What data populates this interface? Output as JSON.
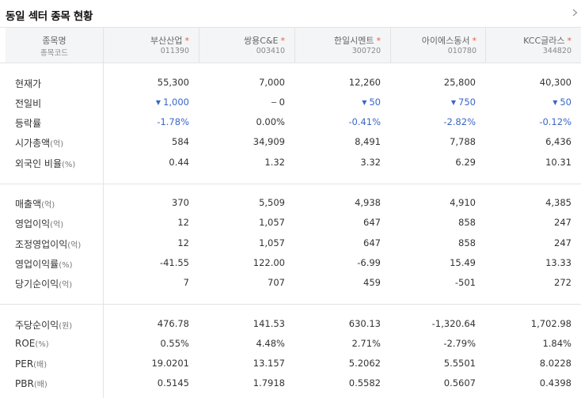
{
  "title": "동일 섹터 종목 현황",
  "header": {
    "label_name": "종목명",
    "label_code": "종목코드",
    "stocks": [
      {
        "name": "부산산업",
        "code": "011390"
      },
      {
        "name": "쌍용C&E",
        "code": "003410"
      },
      {
        "name": "한일시멘트",
        "code": "300720"
      },
      {
        "name": "아이에스동서",
        "code": "010780"
      },
      {
        "name": "KCC글라스",
        "code": "344820"
      }
    ]
  },
  "rows": {
    "price": {
      "label": "현재가",
      "unit": "",
      "values": [
        "55,300",
        "7,000",
        "12,260",
        "25,800",
        "40,300"
      ]
    },
    "change": {
      "label": "전일비",
      "unit": "",
      "values": [
        "1,000",
        "0",
        "50",
        "750",
        "50"
      ],
      "directions": [
        "down",
        "flat",
        "down",
        "down",
        "down"
      ]
    },
    "rate": {
      "label": "등락률",
      "unit": "",
      "values": [
        "-1.78%",
        "0.00%",
        "-0.41%",
        "-2.82%",
        "-0.12%"
      ]
    },
    "mcap": {
      "label": "시가총액",
      "unit": "(억)",
      "values": [
        "584",
        "34,909",
        "8,491",
        "7,788",
        "6,436"
      ]
    },
    "foreign": {
      "label": "외국인 비율",
      "unit": "(%)",
      "values": [
        "0.44",
        "1.32",
        "3.32",
        "6.29",
        "10.31"
      ]
    },
    "sales": {
      "label": "매출액",
      "unit": "(억)",
      "values": [
        "370",
        "5,509",
        "4,938",
        "4,910",
        "4,385"
      ]
    },
    "op": {
      "label": "영업이익",
      "unit": "(억)",
      "values": [
        "12",
        "1,057",
        "647",
        "858",
        "247"
      ]
    },
    "adj_op": {
      "label": "조정영업이익",
      "unit": "(억)",
      "values": [
        "12",
        "1,057",
        "647",
        "858",
        "247"
      ]
    },
    "op_margin": {
      "label": "영업이익률",
      "unit": "(%)",
      "values": [
        "-41.55",
        "122.00",
        "-6.99",
        "15.49",
        "13.33"
      ]
    },
    "net": {
      "label": "당기순이익",
      "unit": "(억)",
      "values": [
        "7",
        "707",
        "459",
        "-501",
        "272"
      ]
    },
    "eps": {
      "label": "주당순이익",
      "unit": "(원)",
      "values": [
        "476.78",
        "141.53",
        "630.13",
        "-1,320.64",
        "1,702.98"
      ]
    },
    "roe": {
      "label": "ROE",
      "unit": "(%)",
      "values": [
        "0.55%",
        "4.48%",
        "2.71%",
        "-2.79%",
        "1.84%"
      ]
    },
    "per": {
      "label": "PER",
      "unit": "(배)",
      "values": [
        "19.0201",
        "13.157",
        "5.2062",
        "5.5501",
        "8.0228"
      ]
    },
    "pbr": {
      "label": "PBR",
      "unit": "(배)",
      "values": [
        "0.5145",
        "1.7918",
        "0.5582",
        "0.5607",
        "0.4398"
      ]
    }
  },
  "colors": {
    "down": "#3a66c7",
    "star": "#e85d3c",
    "header_bg": "#f4f5f7"
  },
  "icons": {
    "more": "chevron-right-icon",
    "down": "triangle-down-icon"
  }
}
